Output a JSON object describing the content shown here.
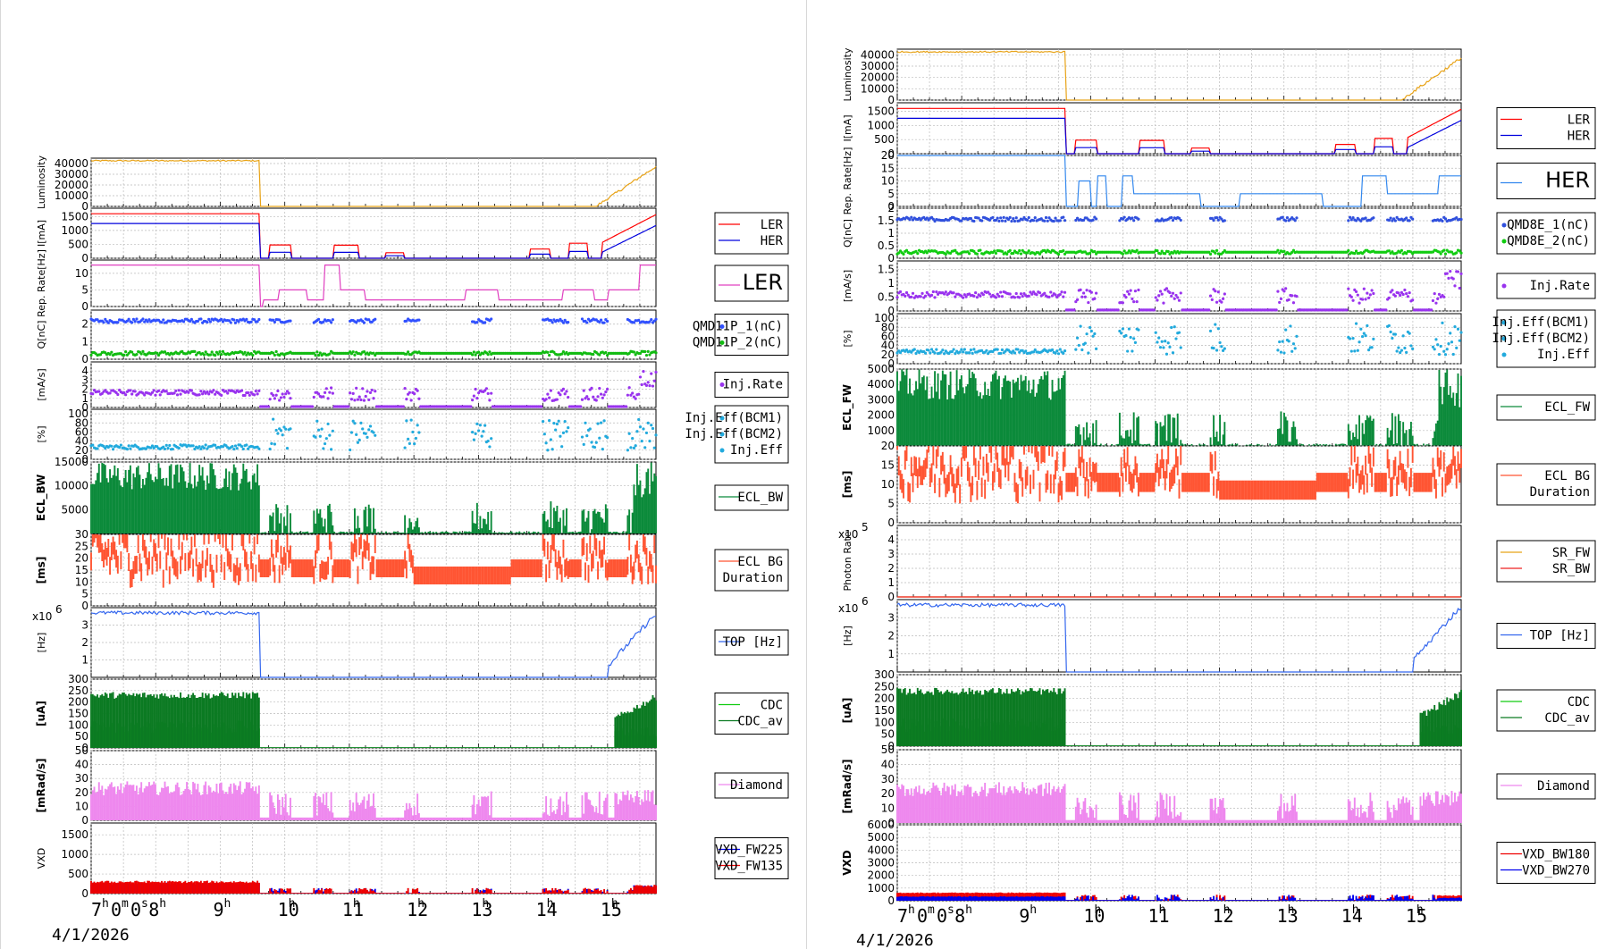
{
  "chart_data": [
    {
      "type": "line",
      "date": "4/1/2026",
      "x_ticks": [
        "7",
        "8",
        "9",
        "10",
        "11",
        "12",
        "13",
        "14",
        "15"
      ],
      "x_first_extra": "0m0s",
      "x_range_hours": [
        7.0,
        15.75
      ],
      "beam_loss_hour": 9.62,
      "panels": [
        {
          "id": "lum",
          "ylabel": "Luminosity",
          "yticks": [
            0,
            10000,
            20000,
            30000,
            40000
          ],
          "ylim": [
            0,
            45000
          ],
          "series": [
            {
              "name": "",
              "color": "#e8a317"
            }
          ],
          "legend": []
        },
        {
          "id": "cur",
          "ylabel": "I[mA]",
          "yticks": [
            0,
            500,
            1000,
            1500
          ],
          "ylim": [
            0,
            1800
          ],
          "series": [
            {
              "name": "LER",
              "color": "#ff0000"
            },
            {
              "name": "HER",
              "color": "#0000dd"
            }
          ],
          "legend": [
            "LER",
            "HER"
          ]
        },
        {
          "id": "rep",
          "ylabel": "Rep. Rate[Hz]",
          "yticks": [
            0,
            5,
            10
          ],
          "ylim": [
            0,
            14
          ],
          "series": [
            {
              "name": "LER",
              "color": "#e040c0"
            }
          ],
          "legend": [
            "LER"
          ],
          "legend_big": true
        },
        {
          "id": "q",
          "ylabel": "Q[nC]",
          "yticks": [
            0,
            1,
            2
          ],
          "ylim": [
            0,
            2.8
          ],
          "series": [
            {
              "name": "QMD11P_1(nC)",
              "color": "#3050ff"
            },
            {
              "name": "QMD11P_2(nC)",
              "color": "#11bb11"
            }
          ],
          "legend": [
            "QMD11P_1(nC)",
            "QMD11P_2(nC)"
          ],
          "legend_dots": true
        },
        {
          "id": "inj",
          "ylabel": "[mA/s]",
          "yticks": [
            0,
            1,
            2,
            3,
            4
          ],
          "ylim": [
            0,
            5
          ],
          "series": [
            {
              "name": "Inj.Rate",
              "color": "#9933ee"
            }
          ],
          "legend": [
            "Inj.Rate"
          ],
          "legend_dots": true
        },
        {
          "id": "eff",
          "ylabel": "[%]",
          "yticks": [
            0,
            20,
            40,
            60,
            80,
            100
          ],
          "ylim": [
            0,
            110
          ],
          "series": [
            {
              "name": "Inj.Eff",
              "color": "#22aadd"
            }
          ],
          "legend": [
            "Inj.Eff(BCM1)",
            "Inj.Eff(BCM2)",
            "Inj.Eff"
          ],
          "legend_dots": true
        },
        {
          "id": "ecl",
          "ylabel": "ECL_BW",
          "yticks": [
            5000,
            10000,
            15000
          ],
          "ylim": [
            0,
            15000
          ],
          "series": [
            {
              "name": "ECL_BW",
              "color": "#0b8a3a"
            }
          ],
          "legend": [
            "ECL_BW"
          ]
        },
        {
          "id": "bgd",
          "ylabel": "[ms]",
          "yticks": [
            0,
            5,
            10,
            15,
            20,
            25,
            30
          ],
          "ylim": [
            0,
            30
          ],
          "series": [
            {
              "name": "ECL BG Duration",
              "color": "#ff5533"
            }
          ],
          "legend": [
            "ECL BG",
            "Duration"
          ]
        },
        {
          "id": "top",
          "ylabel": "[Hz]",
          "yticks": [
            1,
            2,
            3
          ],
          "ylim": [
            0,
            4
          ],
          "multiplier": "x10",
          "multiplier_exp": "6",
          "series": [
            {
              "name": "TOP [Hz]",
              "color": "#3366ee"
            }
          ],
          "legend": [
            "TOP [Hz]"
          ]
        },
        {
          "id": "cdc",
          "ylabel": "[uA]",
          "yticks": [
            0,
            50,
            100,
            150,
            200,
            250,
            300
          ],
          "ylim": [
            0,
            300
          ],
          "series": [
            {
              "name": "CDC",
              "color": "#11cc11"
            },
            {
              "name": "CDC_av",
              "color": "#0b7a22"
            }
          ],
          "legend": [
            "CDC",
            "CDC_av"
          ]
        },
        {
          "id": "dia",
          "ylabel": "[mRad/s]",
          "yticks": [
            0,
            10,
            20,
            30,
            40,
            50
          ],
          "ylim": [
            0,
            50
          ],
          "series": [
            {
              "name": "Diamond",
              "color": "#ee88ee"
            }
          ],
          "legend": [
            "Diamond"
          ]
        },
        {
          "id": "vxd",
          "ylabel": "VXD",
          "yticks": [
            0,
            500,
            1000,
            1500
          ],
          "ylim": [
            0,
            1800
          ],
          "series": [
            {
              "name": "VXD_FW225",
              "color": "#0000ee"
            },
            {
              "name": "VXD_FW135",
              "color": "#ee0000"
            }
          ],
          "legend": [
            "VXD_FW225",
            "VXD_FW135"
          ]
        }
      ]
    },
    {
      "type": "line",
      "date": "4/1/2026",
      "x_ticks": [
        "7",
        "8",
        "9",
        "10",
        "11",
        "12",
        "13",
        "14",
        "15"
      ],
      "x_first_extra": "0m0s",
      "x_range_hours": [
        7.0,
        15.75
      ],
      "beam_loss_hour": 9.62,
      "panels": [
        {
          "id": "lum",
          "ylabel": "Luminosity",
          "yticks": [
            0,
            10000,
            20000,
            30000,
            40000
          ],
          "ylim": [
            0,
            45000
          ],
          "series": [
            {
              "name": "",
              "color": "#e8a317"
            }
          ],
          "legend": []
        },
        {
          "id": "cur",
          "ylabel": "I[mA]",
          "yticks": [
            0,
            500,
            1000,
            1500
          ],
          "ylim": [
            0,
            1800
          ],
          "series": [
            {
              "name": "LER",
              "color": "#ff0000"
            },
            {
              "name": "HER",
              "color": "#0000dd"
            }
          ],
          "legend": [
            "LER",
            "HER"
          ]
        },
        {
          "id": "rep",
          "ylabel": "Rep. Rate[Hz]",
          "yticks": [
            0,
            5,
            10,
            15,
            20
          ],
          "ylim": [
            0,
            20
          ],
          "series": [
            {
              "name": "HER",
              "color": "#3388ee"
            }
          ],
          "legend": [
            "HER"
          ],
          "legend_big": true
        },
        {
          "id": "q",
          "ylabel": "Q[nC]",
          "yticks": [
            0,
            0.5,
            1,
            1.5,
            2
          ],
          "ylim": [
            0,
            2
          ],
          "series": [
            {
              "name": "QMD8E_1(nC)",
              "color": "#3050dd"
            },
            {
              "name": "QMD8E_2(nC)",
              "color": "#11cc11"
            }
          ],
          "legend": [
            "QMD8E_1(nC)",
            "QMD8E_2(nC)"
          ],
          "legend_dots": true
        },
        {
          "id": "inj",
          "ylabel": "[mA/s]",
          "yticks": [
            0,
            0.5,
            1,
            1.5
          ],
          "ylim": [
            0,
            1.8
          ],
          "series": [
            {
              "name": "Inj.Rate",
              "color": "#9933ee"
            }
          ],
          "legend": [
            "Inj.Rate"
          ],
          "legend_dots": true
        },
        {
          "id": "eff",
          "ylabel": "[%]",
          "yticks": [
            0,
            20,
            40,
            60,
            80,
            100
          ],
          "ylim": [
            0,
            110
          ],
          "series": [
            {
              "name": "Inj.Eff",
              "color": "#22aadd"
            }
          ],
          "legend": [
            "Inj.Eff(BCM1)",
            "Inj.Eff(BCM2)",
            "Inj.Eff"
          ],
          "legend_dots": true
        },
        {
          "id": "ecl",
          "ylabel": "ECL_FW",
          "yticks": [
            1000,
            2000,
            3000,
            4000,
            5000
          ],
          "ylim": [
            0,
            5000
          ],
          "series": [
            {
              "name": "ECL_FW",
              "color": "#0b8a3a"
            }
          ],
          "legend": [
            "ECL_FW"
          ]
        },
        {
          "id": "bgd",
          "ylabel": "[ms]",
          "yticks": [
            0,
            5,
            10,
            15,
            20
          ],
          "ylim": [
            0,
            20
          ],
          "series": [
            {
              "name": "ECL BG Duration",
              "color": "#ff5533"
            }
          ],
          "legend": [
            "ECL BG",
            "Duration"
          ]
        },
        {
          "id": "sr",
          "ylabel": "Photon Rate",
          "yticks": [
            0,
            1,
            2,
            3,
            4
          ],
          "ylim": [
            0,
            5
          ],
          "multiplier": "x10",
          "multiplier_exp": "5",
          "series": [
            {
              "name": "SR_FW",
              "color": "#e8a317"
            },
            {
              "name": "SR_BW",
              "color": "#ee2222"
            }
          ],
          "legend": [
            "SR_FW",
            "SR_BW"
          ]
        },
        {
          "id": "top",
          "ylabel": "[Hz]",
          "yticks": [
            1,
            2,
            3
          ],
          "ylim": [
            0,
            4
          ],
          "multiplier": "x10",
          "multiplier_exp": "6",
          "series": [
            {
              "name": "TOP [Hz]",
              "color": "#3366ee"
            }
          ],
          "legend": [
            "TOP [Hz]"
          ]
        },
        {
          "id": "cdc",
          "ylabel": "[uA]",
          "yticks": [
            0,
            50,
            100,
            150,
            200,
            250,
            300
          ],
          "ylim": [
            0,
            300
          ],
          "series": [
            {
              "name": "CDC",
              "color": "#11cc11"
            },
            {
              "name": "CDC_av",
              "color": "#0b7a22"
            }
          ],
          "legend": [
            "CDC",
            "CDC_av"
          ]
        },
        {
          "id": "dia",
          "ylabel": "[mRad/s]",
          "yticks": [
            0,
            10,
            20,
            30,
            40,
            50
          ],
          "ylim": [
            0,
            50
          ],
          "series": [
            {
              "name": "Diamond",
              "color": "#ee88ee"
            }
          ],
          "legend": [
            "Diamond"
          ]
        },
        {
          "id": "vxd",
          "ylabel": "VXD",
          "yticks": [
            0,
            1000,
            2000,
            3000,
            4000,
            5000,
            6000
          ],
          "ylim": [
            0,
            6000
          ],
          "series": [
            {
              "name": "VXD_BW180",
              "color": "#ee0000"
            },
            {
              "name": "VXD_BW270",
              "color": "#0000ee"
            }
          ],
          "legend": [
            "VXD_BW180",
            "VXD_BW270"
          ]
        }
      ]
    }
  ]
}
